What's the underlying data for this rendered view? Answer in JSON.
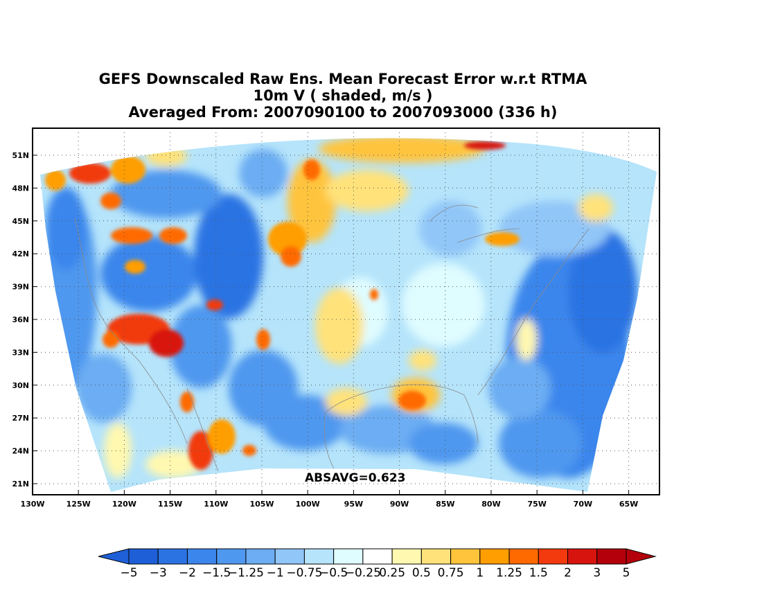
{
  "title": {
    "line1": "GEFS Downscaled Raw Ens. Mean Forecast Error w.r.t RTMA",
    "line2": "10m V ( shaded, m/s )",
    "line3": "Averaged From: 2007090100 to 2007093000 (336 h)"
  },
  "annotation": "ABSAVG=0.623",
  "axes": {
    "lat_labels": [
      "51N",
      "48N",
      "45N",
      "42N",
      "39N",
      "36N",
      "33N",
      "30N",
      "27N",
      "24N",
      "21N"
    ],
    "lon_labels": [
      "130W",
      "125W",
      "120W",
      "115W",
      "110W",
      "105W",
      "100W",
      "95W",
      "90W",
      "85W",
      "80W",
      "75W",
      "70W",
      "65W"
    ]
  },
  "colorbar": {
    "labels": [
      "-5",
      "-3",
      "-2",
      "-1.5",
      "-1.25",
      "-1",
      "-0.75",
      "-0.5",
      "-0.25",
      "0.25",
      "0.5",
      "0.75",
      "1",
      "1.25",
      "1.5",
      "2",
      "3",
      "5"
    ],
    "colors": [
      "#1e5fd8",
      "#2b73e3",
      "#3b86ec",
      "#4f98ef",
      "#6cadf3",
      "#91c6f8",
      "#b5e4fb",
      "#dffcff",
      "#ffffff",
      "#fff8b0",
      "#ffe27a",
      "#ffc43c",
      "#ff9e00",
      "#ff6a00",
      "#f23a0e",
      "#d8140f",
      "#b3000a"
    ],
    "extend_low_color": "#1e5fd8",
    "extend_high_color": "#b3000a"
  },
  "map_fields": {
    "regions": "continental United States, southern Canada, northern Mexico",
    "pacific_coast": "blue (negative)",
    "interior_southwest": "red/orange (positive)",
    "east_coast_atlantic": "blue (negative)",
    "central_plains": "yellow/orange (positive)"
  }
}
